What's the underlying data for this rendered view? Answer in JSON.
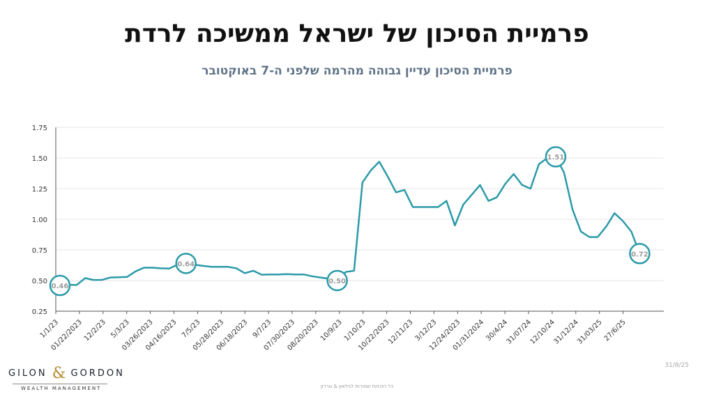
{
  "header": {
    "title": "פרמיית הסיכון של ישראל ממשיכה לרדת",
    "subtitle": "פרמיית הסיכון עדיין גבוהה מהרמה שלפני ה-7 באוקטובר"
  },
  "footer": {
    "date": "31/8/25",
    "copyright": "כל הזכויות שמורות לגילאון & גורדון",
    "logo_main_left": "GILON",
    "logo_amp": "&",
    "logo_main_right": "GORDON",
    "logo_sub": "WEALTH MANAGEMENT"
  },
  "colors": {
    "line": "#2a9aa8",
    "marker_fill": "#ffffff",
    "marker_text": "#9c9c9c",
    "grid": "#e6e6e6",
    "axis": "#555555"
  },
  "chart_data": {
    "type": "line",
    "title": "",
    "xlabel": "",
    "ylabel": "",
    "ylim": [
      0.25,
      1.75
    ],
    "yticks": [
      "0.25",
      "0.50",
      "0.75",
      "1.00",
      "1.25",
      "1.50",
      "1.75"
    ],
    "grid": true,
    "series": [
      {
        "values": [
          0.46,
          0.465,
          0.465,
          0.52,
          0.505,
          0.505,
          0.525,
          0.527,
          0.53,
          0.575,
          0.605,
          0.605,
          0.6,
          0.598,
          0.63,
          0.64,
          0.63,
          0.62,
          0.612,
          0.612,
          0.612,
          0.6,
          0.56,
          0.58,
          0.548,
          0.55,
          0.55,
          0.552,
          0.55,
          0.55,
          0.535,
          0.525,
          0.515,
          0.5,
          0.57,
          0.58,
          1.3,
          1.4,
          1.47,
          1.35,
          1.22,
          1.24,
          1.1,
          1.1,
          1.1,
          1.1,
          1.15,
          0.95,
          1.12,
          1.2,
          1.28,
          1.15,
          1.18,
          1.29,
          1.37,
          1.28,
          1.25,
          1.45,
          1.5,
          1.51,
          1.38,
          1.08,
          0.9,
          0.855,
          0.855,
          0.94,
          1.05,
          0.985,
          0.9,
          0.72
        ]
      }
    ],
    "tick_labels": [
      {
        "label": "1/1/23",
        "index": 0
      },
      {
        "label": "01/22/2023",
        "index": 3
      },
      {
        "label": "12/2/23",
        "index": 6
      },
      {
        "label": "5/3/23",
        "index": 9
      },
      {
        "label": "03/26/2023",
        "index": 12
      },
      {
        "label": "04/16/2023",
        "index": 15
      },
      {
        "label": "7/5/23",
        "index": 18
      },
      {
        "label": "05/28/2023",
        "index": 21
      },
      {
        "label": "06/18/2023",
        "index": 24
      },
      {
        "label": "9/7/23",
        "index": 27
      },
      {
        "label": "07/30/2023",
        "index": 30
      },
      {
        "label": "08/20/2023",
        "index": 33
      },
      {
        "label": "10/9/23",
        "index": 36
      },
      {
        "label": "1/10/23",
        "index": 39
      },
      {
        "label": "10/22/2023",
        "index": 42
      },
      {
        "label": "12/11/23",
        "index": 45
      },
      {
        "label": "3/12/23",
        "index": 48
      },
      {
        "label": "12/24/2023",
        "index": 51
      },
      {
        "label": "01/31/2024",
        "index": 54
      },
      {
        "label": "30/4/24",
        "index": 57
      },
      {
        "label": "31/07/24",
        "index": 60
      },
      {
        "label": "12/10/24",
        "index": 63
      },
      {
        "label": "31/12/24",
        "index": 66
      },
      {
        "label": "31/03/25",
        "index": 69
      },
      {
        "label": "27/6/25",
        "index": 72
      }
    ],
    "annotations": [
      {
        "index": 0,
        "value": 0.46,
        "label": "0.46"
      },
      {
        "index": 15,
        "value": 0.64,
        "label": "0.64"
      },
      {
        "index": 33,
        "value": 0.5,
        "label": "0.50"
      },
      {
        "index": 59,
        "value": 1.51,
        "label": "1.51"
      },
      {
        "index": 69,
        "value": 0.72,
        "label": "0.72"
      }
    ]
  }
}
